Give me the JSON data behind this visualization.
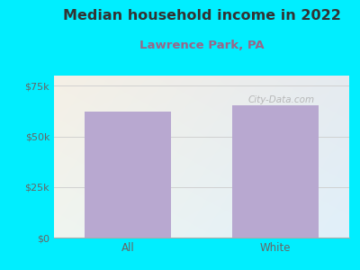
{
  "title": "Median household income in 2022",
  "subtitle": "Lawrence Park, PA",
  "categories": [
    "All",
    "White"
  ],
  "values": [
    62000,
    65500
  ],
  "bar_color": "#b8a8d0",
  "title_fontsize": 11.5,
  "subtitle_fontsize": 9.5,
  "subtitle_color": "#996688",
  "title_color": "#333333",
  "tick_color": "#666666",
  "background_outer": "#00eeff",
  "bg_top_left": "#f0f8ee",
  "bg_top_right": "#ddf0ef",
  "bg_bottom_left": "#ddeedd",
  "bg_bottom_right": "#cceee8",
  "ylim": [
    0,
    80000
  ],
  "yticks": [
    0,
    25000,
    50000,
    75000
  ],
  "ytick_labels": [
    "$0",
    "$25k",
    "$50k",
    "$75k"
  ],
  "watermark": "City-Data.com",
  "grid_color": "#cccccc"
}
